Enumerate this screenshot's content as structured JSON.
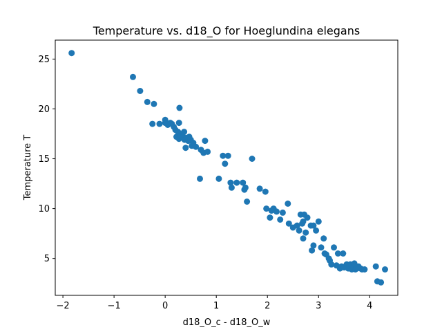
{
  "chart_data": {
    "type": "scatter",
    "title": "Temperature vs. d18_O for Hoeglundina elegans",
    "xlabel": "d18_O_c - d18_O_w",
    "ylabel": "Temperature T",
    "xlim": [
      -2.15,
      4.55
    ],
    "ylim": [
      1.3,
      26.9
    ],
    "xticks": [
      -2,
      -1,
      0,
      1,
      2,
      3,
      4
    ],
    "yticks": [
      5,
      10,
      15,
      20,
      25
    ],
    "grid": false,
    "marker_color": "#1f77b4",
    "x": [
      -1.83,
      -0.63,
      -0.49,
      -0.35,
      -0.22,
      -0.25,
      -0.11,
      0.0,
      0.0,
      0.05,
      0.1,
      0.13,
      0.17,
      0.2,
      0.22,
      0.25,
      0.27,
      0.27,
      0.28,
      0.3,
      0.33,
      0.35,
      0.37,
      0.38,
      0.4,
      0.42,
      0.45,
      0.47,
      0.5,
      0.52,
      0.55,
      0.6,
      0.7,
      0.68,
      0.75,
      0.78,
      0.83,
      1.05,
      1.13,
      1.17,
      1.23,
      1.28,
      1.3,
      1.4,
      1.52,
      1.55,
      1.57,
      1.6,
      1.7,
      1.85,
      1.96,
      1.98,
      2.05,
      2.08,
      2.12,
      2.18,
      2.25,
      2.3,
      2.4,
      2.42,
      2.5,
      2.58,
      2.62,
      2.65,
      2.68,
      2.7,
      2.7,
      2.72,
      2.75,
      2.78,
      2.85,
      2.87,
      2.9,
      2.9,
      2.95,
      3.0,
      3.05,
      3.1,
      3.12,
      3.15,
      3.2,
      3.22,
      3.25,
      3.3,
      3.35,
      3.38,
      3.42,
      3.45,
      3.48,
      3.5,
      3.55,
      3.58,
      3.6,
      3.62,
      3.65,
      3.68,
      3.7,
      3.72,
      3.75,
      3.78,
      3.82,
      3.85,
      3.9,
      4.12,
      4.15,
      4.22,
      4.3
    ],
    "y": [
      25.6,
      23.2,
      21.8,
      20.7,
      20.5,
      18.5,
      18.5,
      18.9,
      18.6,
      18.4,
      18.6,
      18.5,
      18.2,
      17.9,
      17.2,
      17.7,
      17.0,
      18.6,
      20.1,
      17.3,
      17.5,
      17.2,
      17.7,
      16.9,
      16.1,
      17.1,
      16.8,
      17.2,
      16.9,
      16.3,
      16.6,
      16.2,
      15.9,
      13.0,
      15.6,
      16.8,
      15.7,
      13.0,
      15.3,
      14.5,
      15.3,
      12.6,
      12.1,
      12.6,
      12.6,
      11.9,
      12.1,
      10.7,
      15.0,
      12.0,
      11.7,
      10.0,
      9.1,
      9.8,
      10.0,
      9.7,
      8.9,
      9.6,
      10.5,
      8.5,
      8.1,
      8.3,
      7.8,
      9.4,
      8.5,
      8.7,
      7.0,
      9.4,
      7.6,
      9.1,
      8.3,
      5.8,
      6.3,
      8.3,
      7.8,
      8.7,
      6.1,
      7.0,
      5.5,
      5.4,
      5.0,
      4.8,
      4.4,
      6.1,
      4.3,
      5.5,
      4.0,
      4.2,
      5.5,
      4.1,
      4.4,
      4.0,
      4.3,
      4.4,
      3.9,
      4.1,
      4.5,
      3.9,
      4.0,
      4.2,
      4.0,
      3.9,
      3.9,
      4.2,
      2.7,
      2.6,
      3.9
    ]
  }
}
